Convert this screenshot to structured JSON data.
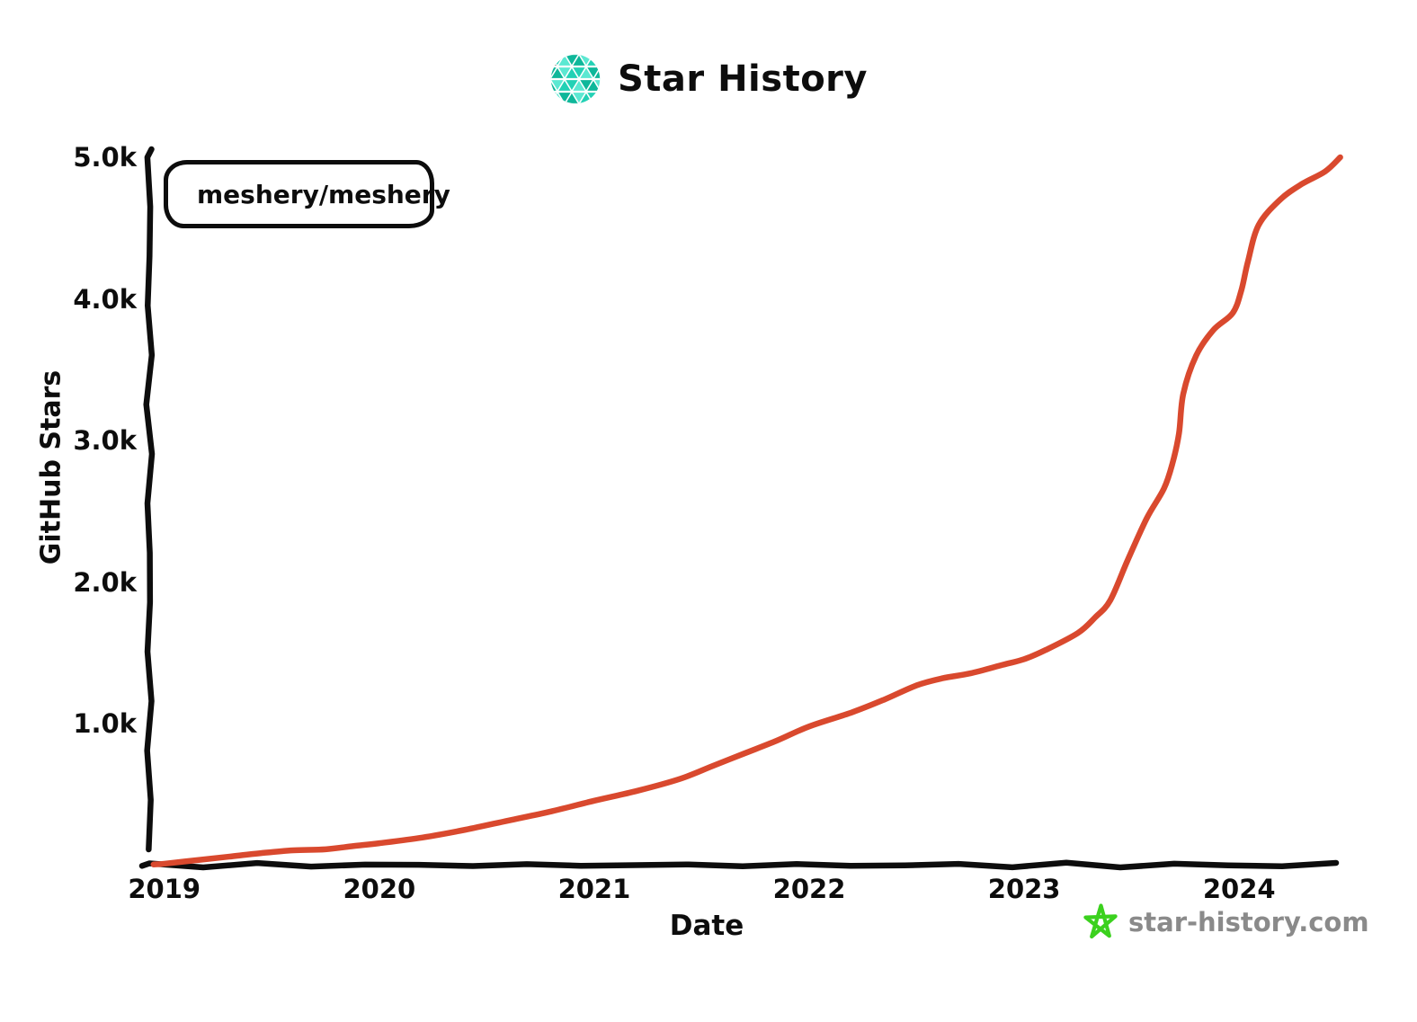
{
  "header": {
    "title": "Star History"
  },
  "legend": {
    "series_label": "meshery/meshery",
    "marker_color": "#d9492e"
  },
  "axes": {
    "y_title": "GitHub Stars",
    "x_title": "Date",
    "y_ticks": [
      "5.0k",
      "4.0k",
      "3.0k",
      "2.0k",
      "1.0k"
    ],
    "x_ticks": [
      "2019",
      "2020",
      "2021",
      "2022",
      "2023",
      "2024"
    ]
  },
  "footer": {
    "site": "star-history.com",
    "star_color": "#3bd11e",
    "text_color": "#8a8a8a"
  },
  "colors": {
    "line": "#d9492e",
    "axis": "#0d0d0d",
    "logo_teals": [
      "#0fb79a",
      "#23d1b5",
      "#5ce8d2"
    ]
  },
  "chart_data": {
    "type": "line",
    "title": "Star History",
    "xlabel": "Date",
    "ylabel": "GitHub Stars",
    "legend_position": "top-left",
    "grid": false,
    "xlim": [
      2018.93,
      2024.48
    ],
    "ylim": [
      0,
      5000
    ],
    "x_tick_years": [
      2019,
      2020,
      2021,
      2022,
      2023,
      2024
    ],
    "y_tick_values": [
      5000,
      4000,
      3000,
      2000,
      1000
    ],
    "series": [
      {
        "name": "meshery/meshery",
        "color": "#d9492e",
        "points": [
          [
            2018.95,
            5
          ],
          [
            2019.0,
            10
          ],
          [
            2019.15,
            35
          ],
          [
            2019.3,
            60
          ],
          [
            2019.45,
            85
          ],
          [
            2019.6,
            105
          ],
          [
            2019.75,
            112
          ],
          [
            2019.88,
            135
          ],
          [
            2020.0,
            155
          ],
          [
            2020.2,
            195
          ],
          [
            2020.4,
            250
          ],
          [
            2020.6,
            315
          ],
          [
            2020.8,
            380
          ],
          [
            2021.0,
            455
          ],
          [
            2021.2,
            525
          ],
          [
            2021.4,
            610
          ],
          [
            2021.55,
            700
          ],
          [
            2021.7,
            790
          ],
          [
            2021.85,
            880
          ],
          [
            2022.0,
            980
          ],
          [
            2022.2,
            1080
          ],
          [
            2022.35,
            1170
          ],
          [
            2022.5,
            1270
          ],
          [
            2022.62,
            1320
          ],
          [
            2022.75,
            1355
          ],
          [
            2022.9,
            1415
          ],
          [
            2023.0,
            1455
          ],
          [
            2023.1,
            1520
          ],
          [
            2023.25,
            1640
          ],
          [
            2023.33,
            1750
          ],
          [
            2023.4,
            1870
          ],
          [
            2023.48,
            2150
          ],
          [
            2023.57,
            2450
          ],
          [
            2023.65,
            2660
          ],
          [
            2023.69,
            2840
          ],
          [
            2023.72,
            3050
          ],
          [
            2023.74,
            3330
          ],
          [
            2023.8,
            3600
          ],
          [
            2023.88,
            3780
          ],
          [
            2023.97,
            3900
          ],
          [
            2024.01,
            4060
          ],
          [
            2024.04,
            4260
          ],
          [
            2024.09,
            4520
          ],
          [
            2024.19,
            4700
          ],
          [
            2024.29,
            4810
          ],
          [
            2024.4,
            4900
          ],
          [
            2024.47,
            5000
          ]
        ]
      }
    ]
  }
}
